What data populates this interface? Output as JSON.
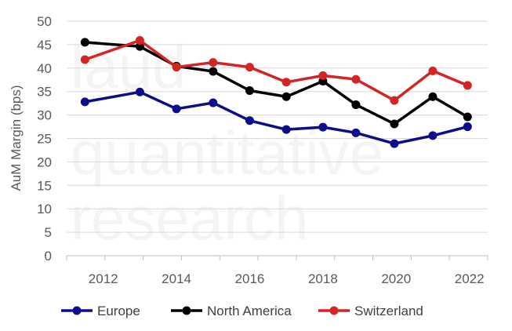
{
  "watermark_lines": [
    "laud",
    "quantitative",
    "research"
  ],
  "chart_data": {
    "type": "line",
    "title": "",
    "xlabel": "",
    "ylabel": "AuM Margin (bps)",
    "x": [
      2011.5,
      2013,
      2014,
      2015,
      2016,
      2017,
      2018,
      2018.9,
      2019.95,
      2021,
      2021.95
    ],
    "x_ticks": [
      2012,
      2014,
      2016,
      2018,
      2020,
      2022
    ],
    "x_tick_labels": [
      "2012",
      "2014",
      "2016",
      "2018",
      "2020",
      "2022"
    ],
    "xlim": [
      2011,
      2022.5
    ],
    "ylim": [
      0,
      50
    ],
    "y_ticks": [
      0,
      5,
      10,
      15,
      20,
      25,
      30,
      35,
      40,
      45,
      50
    ],
    "y_tick_labels": [
      "0",
      "5",
      "10",
      "15",
      "20",
      "25",
      "30",
      "35",
      "40",
      "45",
      "50"
    ],
    "grid": "horizontal",
    "legend_position": "bottom",
    "series": [
      {
        "name": "Europe",
        "color": "#0d0d8c",
        "values": [
          32.8,
          34.9,
          31.3,
          32.6,
          28.8,
          26.9,
          27.4,
          26.2,
          23.9,
          25.6,
          27.5
        ]
      },
      {
        "name": "North America",
        "color": "#000000",
        "values": [
          45.5,
          44.6,
          40.4,
          39.3,
          35.2,
          33.9,
          37.2,
          32.2,
          28.1,
          33.9,
          29.6
        ]
      },
      {
        "name": "Switzerland",
        "color": "#d42424",
        "values": [
          41.8,
          45.9,
          40.2,
          41.2,
          40.2,
          37.0,
          38.4,
          37.6,
          33.1,
          39.4,
          36.3
        ]
      }
    ]
  }
}
